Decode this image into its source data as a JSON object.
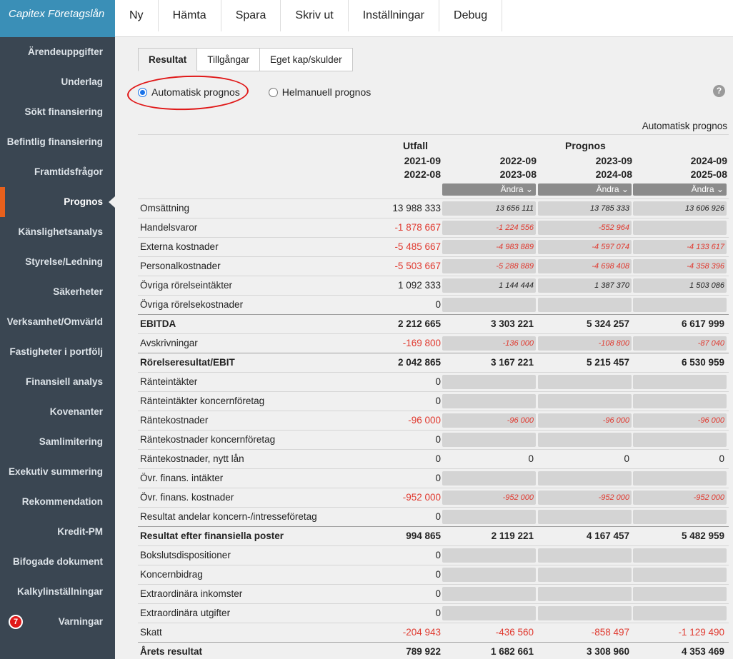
{
  "brand": "Capitex Företagslån",
  "menu": [
    "Ny",
    "Hämta",
    "Spara",
    "Skriv ut",
    "Inställningar",
    "Debug"
  ],
  "sidebar": [
    "Ärendeuppgifter",
    "Underlag",
    "Sökt finansiering",
    "Befintlig finansiering",
    "Framtidsfrågor",
    "Prognos",
    "Känslighetsanalys",
    "Styrelse/Ledning",
    "Säkerheter",
    "Verksamhet/Omvärld",
    "Fastigheter i portfölj",
    "Finansiell analys",
    "Kovenanter",
    "Samlimitering",
    "Exekutiv summering",
    "Rekommendation",
    "Kredit-PM",
    "Bifogade dokument",
    "Kalkylinställningar",
    "Varningar"
  ],
  "sidebar_active": "Prognos",
  "warnings_count": "7",
  "tabs": [
    "Resultat",
    "Tillgångar",
    "Eget kap/skulder"
  ],
  "radio": {
    "auto": "Automatisk prognos",
    "manual": "Helmanuell prognos"
  },
  "help": "?",
  "mode_label": "Automatisk prognos",
  "header": {
    "utfall": "Utfall",
    "prognos": "Prognos",
    "periods": [
      [
        "2021-09",
        "2022-08"
      ],
      [
        "2022-09",
        "2023-08"
      ],
      [
        "2023-09",
        "2024-08"
      ],
      [
        "2024-09",
        "2025-08"
      ]
    ],
    "andra": "Ändra"
  },
  "rows": [
    {
      "label": "Omsättning",
      "v": [
        "13 988 333",
        "13 656 111",
        "13 785 333",
        "13 606 926"
      ]
    },
    {
      "label": "Handelsvaror",
      "v": [
        "-1 878 667",
        "-1 224 556",
        "-552 964",
        ""
      ],
      "neg": true
    },
    {
      "label": "Externa kostnader",
      "v": [
        "-5 485 667",
        "-4 983 889",
        "-4 597 074",
        "-4 133 617"
      ],
      "neg": true
    },
    {
      "label": "Personalkostnader",
      "v": [
        "-5 503 667",
        "-5 288 889",
        "-4 698 408",
        "-4 358 396"
      ],
      "neg": true
    },
    {
      "label": "Övriga rörelseintäkter",
      "v": [
        "1 092 333",
        "1 144 444",
        "1 387 370",
        "1 503 086"
      ]
    },
    {
      "label": "Övriga rörelsekostnader",
      "v": [
        "0",
        "",
        "",
        ""
      ]
    },
    {
      "label": "EBITDA",
      "v": [
        "2 212 665",
        "3 303 221",
        "5 324 257",
        "6 617 999"
      ],
      "bold": true
    },
    {
      "label": "Avskrivningar",
      "v": [
        "-169 800",
        "-136 000",
        "-108 800",
        "-87 040"
      ],
      "neg": true
    },
    {
      "label": "Rörelseresultat/EBIT",
      "v": [
        "2 042 865",
        "3 167 221",
        "5 215 457",
        "6 530 959"
      ],
      "bold": true
    },
    {
      "label": "Ränteintäkter",
      "v": [
        "0",
        "",
        "",
        ""
      ]
    },
    {
      "label": "Ränteintäkter koncernföretag",
      "v": [
        "0",
        "",
        "",
        ""
      ]
    },
    {
      "label": "Räntekostnader",
      "v": [
        "-96 000",
        "-96 000",
        "-96 000",
        "-96 000"
      ],
      "neg": true
    },
    {
      "label": "Räntekostnader koncernföretag",
      "v": [
        "0",
        "",
        "",
        ""
      ]
    },
    {
      "label": "Räntekostnader, nytt lån",
      "v": [
        "0",
        "0",
        "0",
        "0"
      ],
      "plain": true
    },
    {
      "label": "Övr. finans. intäkter",
      "v": [
        "0",
        "",
        "",
        ""
      ]
    },
    {
      "label": "Övr. finans. kostnader",
      "v": [
        "-952 000",
        "-952 000",
        "-952 000",
        "-952 000"
      ],
      "neg": true
    },
    {
      "label": "Resultat andelar koncern-/intresseföretag",
      "v": [
        "0",
        "",
        "",
        ""
      ]
    },
    {
      "label": "Resultat efter finansiella poster",
      "v": [
        "994 865",
        "2 119 221",
        "4 167 457",
        "5 482 959"
      ],
      "bold": true
    },
    {
      "label": "Bokslutsdispositioner",
      "v": [
        "0",
        "",
        "",
        ""
      ]
    },
    {
      "label": "Koncernbidrag",
      "v": [
        "0",
        "",
        "",
        ""
      ]
    },
    {
      "label": "Extraordinära inkomster",
      "v": [
        "0",
        "",
        "",
        ""
      ]
    },
    {
      "label": "Extraordinära utgifter",
      "v": [
        "0",
        "",
        "",
        ""
      ]
    },
    {
      "label": "Skatt",
      "v": [
        "-204 943",
        "-436 560",
        "-858 497",
        "-1 129 490"
      ],
      "neg": true,
      "plain": true
    },
    {
      "label": "Årets resultat",
      "v": [
        "789 922",
        "1 682 661",
        "3 308 960",
        "4 353 469"
      ],
      "bold": true
    }
  ]
}
